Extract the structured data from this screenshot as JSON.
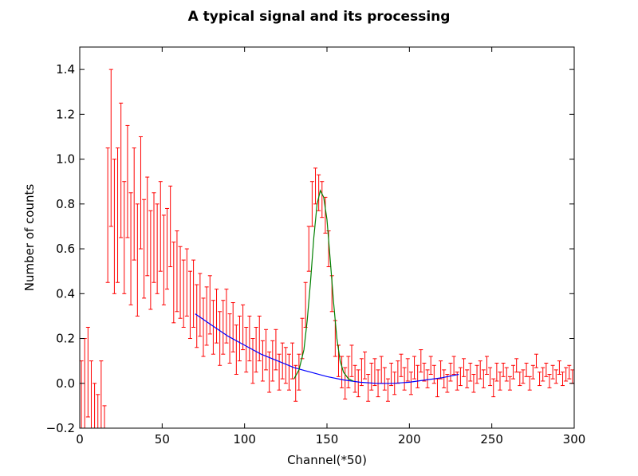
{
  "chart_data": {
    "type": "scatter",
    "title": "A typical signal and its processing",
    "xlabel": "Channel(*50)",
    "ylabel": "Number of counts",
    "xlim": [
      0,
      300
    ],
    "ylim": [
      -0.2,
      1.5
    ],
    "xticks": [
      "0",
      "50",
      "100",
      "150",
      "200",
      "250",
      "300"
    ],
    "yticks": [
      "−0.2",
      "0.0",
      "0.2",
      "0.4",
      "0.6",
      "0.8",
      "1.0",
      "1.2",
      "1.4"
    ],
    "grid": false,
    "legend": "none",
    "series": [
      {
        "kind": "errorbar",
        "color": "#ff0000",
        "x": [
          1,
          3,
          5,
          7,
          9,
          11,
          13,
          15,
          17,
          19,
          21,
          23,
          25,
          27,
          29,
          31,
          33,
          35,
          37,
          39,
          41,
          43,
          45,
          47,
          49,
          51,
          53,
          55,
          57,
          59,
          61,
          63,
          65,
          67,
          69,
          71,
          73,
          75,
          77,
          79,
          81,
          83,
          85,
          87,
          89,
          91,
          93,
          95,
          97,
          99,
          101,
          103,
          105,
          107,
          109,
          111,
          113,
          115,
          117,
          119,
          121,
          123,
          125,
          127,
          129,
          131,
          133,
          135,
          137,
          139,
          141,
          143,
          145,
          147,
          149,
          151,
          153,
          155,
          157,
          159,
          161,
          163,
          165,
          167,
          169,
          171,
          173,
          175,
          177,
          179,
          181,
          183,
          185,
          187,
          189,
          191,
          193,
          195,
          197,
          199,
          201,
          203,
          205,
          207,
          209,
          211,
          213,
          215,
          217,
          219,
          221,
          223,
          225,
          227,
          229,
          231,
          233,
          235,
          237,
          239,
          241,
          243,
          245,
          247,
          249,
          251,
          253,
          255,
          257,
          259,
          261,
          263,
          265,
          267,
          269,
          271,
          273,
          275,
          277,
          279,
          281,
          283,
          285,
          287,
          289,
          291,
          293,
          295,
          297,
          299
        ],
        "y": [
          -0.15,
          0.0,
          0.05,
          -0.1,
          -0.2,
          -0.25,
          -0.1,
          -0.3,
          0.75,
          1.05,
          0.7,
          0.75,
          0.95,
          0.65,
          0.9,
          0.6,
          0.8,
          0.55,
          0.85,
          0.6,
          0.7,
          0.55,
          0.65,
          0.6,
          0.7,
          0.55,
          0.6,
          0.7,
          0.45,
          0.5,
          0.45,
          0.4,
          0.45,
          0.35,
          0.4,
          0.3,
          0.35,
          0.25,
          0.3,
          0.35,
          0.25,
          0.3,
          0.2,
          0.25,
          0.3,
          0.2,
          0.25,
          0.15,
          0.2,
          0.25,
          0.15,
          0.2,
          0.1,
          0.15,
          0.2,
          0.1,
          0.15,
          0.05,
          0.1,
          0.15,
          0.05,
          0.1,
          0.08,
          0.05,
          0.1,
          0.0,
          0.05,
          0.2,
          0.35,
          0.6,
          0.8,
          0.88,
          0.85,
          0.82,
          0.75,
          0.6,
          0.4,
          0.2,
          0.1,
          0.05,
          0.0,
          0.05,
          0.1,
          0.02,
          0.0,
          0.05,
          0.08,
          -0.02,
          0.03,
          0.05,
          0.0,
          0.06,
          0.02,
          -0.03,
          0.04,
          0.0,
          0.05,
          0.08,
          0.02,
          0.06,
          0.0,
          0.07,
          0.03,
          0.1,
          0.05,
          0.02,
          0.08,
          0.04,
          -0.02,
          0.06,
          0.02,
          0.0,
          0.05,
          0.08,
          0.01,
          0.03,
          0.07,
          0.02,
          0.05,
          0.0,
          0.04,
          0.06,
          0.02,
          0.08,
          0.03,
          -0.02,
          0.05,
          0.01,
          0.06,
          0.04,
          0.0,
          0.05,
          0.08,
          0.02,
          0.03,
          0.06,
          0.0,
          0.05,
          0.1,
          0.02,
          0.04,
          0.06,
          0.01,
          0.05,
          0.03,
          0.07,
          0.02,
          0.04,
          0.05,
          0.03
        ],
        "err": [
          0.25,
          0.2,
          0.2,
          0.2,
          0.2,
          0.2,
          0.2,
          0.2,
          0.3,
          0.35,
          0.3,
          0.3,
          0.3,
          0.25,
          0.25,
          0.25,
          0.25,
          0.25,
          0.25,
          0.22,
          0.22,
          0.22,
          0.2,
          0.2,
          0.2,
          0.2,
          0.18,
          0.18,
          0.18,
          0.18,
          0.16,
          0.15,
          0.15,
          0.15,
          0.15,
          0.14,
          0.14,
          0.13,
          0.13,
          0.13,
          0.12,
          0.12,
          0.12,
          0.12,
          0.12,
          0.11,
          0.11,
          0.11,
          0.1,
          0.1,
          0.1,
          0.1,
          0.1,
          0.1,
          0.1,
          0.09,
          0.09,
          0.09,
          0.09,
          0.09,
          0.08,
          0.08,
          0.08,
          0.08,
          0.08,
          0.08,
          0.08,
          0.09,
          0.1,
          0.1,
          0.1,
          0.08,
          0.08,
          0.08,
          0.08,
          0.08,
          0.08,
          0.08,
          0.07,
          0.07,
          0.07,
          0.07,
          0.07,
          0.06,
          0.06,
          0.06,
          0.06,
          0.06,
          0.06,
          0.06,
          0.06,
          0.06,
          0.05,
          0.05,
          0.05,
          0.05,
          0.05,
          0.05,
          0.05,
          0.05,
          0.05,
          0.05,
          0.05,
          0.05,
          0.04,
          0.04,
          0.04,
          0.04,
          0.04,
          0.04,
          0.04,
          0.04,
          0.04,
          0.04,
          0.04,
          0.04,
          0.04,
          0.04,
          0.04,
          0.04,
          0.04,
          0.04,
          0.04,
          0.04,
          0.04,
          0.04,
          0.04,
          0.04,
          0.03,
          0.03,
          0.03,
          0.03,
          0.03,
          0.03,
          0.03,
          0.03,
          0.03,
          0.03,
          0.03,
          0.03,
          0.03,
          0.03,
          0.03,
          0.03,
          0.03,
          0.03,
          0.03,
          0.03,
          0.03,
          0.03
        ]
      },
      {
        "kind": "line",
        "color": "#0000ff",
        "x": [
          70,
          80,
          90,
          100,
          110,
          120,
          130,
          140,
          150,
          160,
          170,
          180,
          190,
          200,
          210,
          220,
          230
        ],
        "y": [
          0.31,
          0.26,
          0.21,
          0.17,
          0.13,
          0.1,
          0.07,
          0.05,
          0.03,
          0.015,
          0.005,
          0.0,
          0.0,
          0.005,
          0.015,
          0.025,
          0.04
        ]
      },
      {
        "kind": "line",
        "color": "#008000",
        "x": [
          130,
          133,
          136,
          138,
          140,
          142,
          144,
          146,
          148,
          150,
          152,
          154,
          156,
          158,
          160,
          163,
          166
        ],
        "y": [
          0.02,
          0.06,
          0.15,
          0.28,
          0.45,
          0.65,
          0.8,
          0.86,
          0.83,
          0.73,
          0.55,
          0.36,
          0.2,
          0.1,
          0.05,
          0.02,
          0.01
        ]
      }
    ]
  }
}
